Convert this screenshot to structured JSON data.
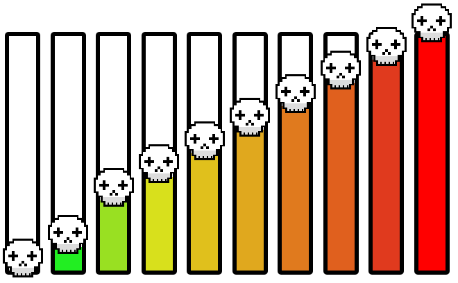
{
  "meters": [
    {
      "level": 0.0,
      "color": "#ffffff",
      "icon": "skull-icon"
    },
    {
      "level": 0.1,
      "color": "#22ee22",
      "icon": "skull-icon"
    },
    {
      "level": 0.3,
      "color": "#99e022",
      "icon": "skull-icon"
    },
    {
      "level": 0.4,
      "color": "#d8e01c",
      "icon": "skull-icon"
    },
    {
      "level": 0.5,
      "color": "#e0c01c",
      "icon": "skull-icon"
    },
    {
      "level": 0.6,
      "color": "#e0a81e",
      "icon": "skull-icon"
    },
    {
      "level": 0.7,
      "color": "#e07a1e",
      "icon": "skull-icon"
    },
    {
      "level": 0.8,
      "color": "#e0601e",
      "icon": "skull-icon"
    },
    {
      "level": 0.9,
      "color": "#e03a1e",
      "icon": "skull-icon"
    },
    {
      "level": 1.0,
      "color": "#ff0000",
      "icon": "skull-icon"
    }
  ]
}
